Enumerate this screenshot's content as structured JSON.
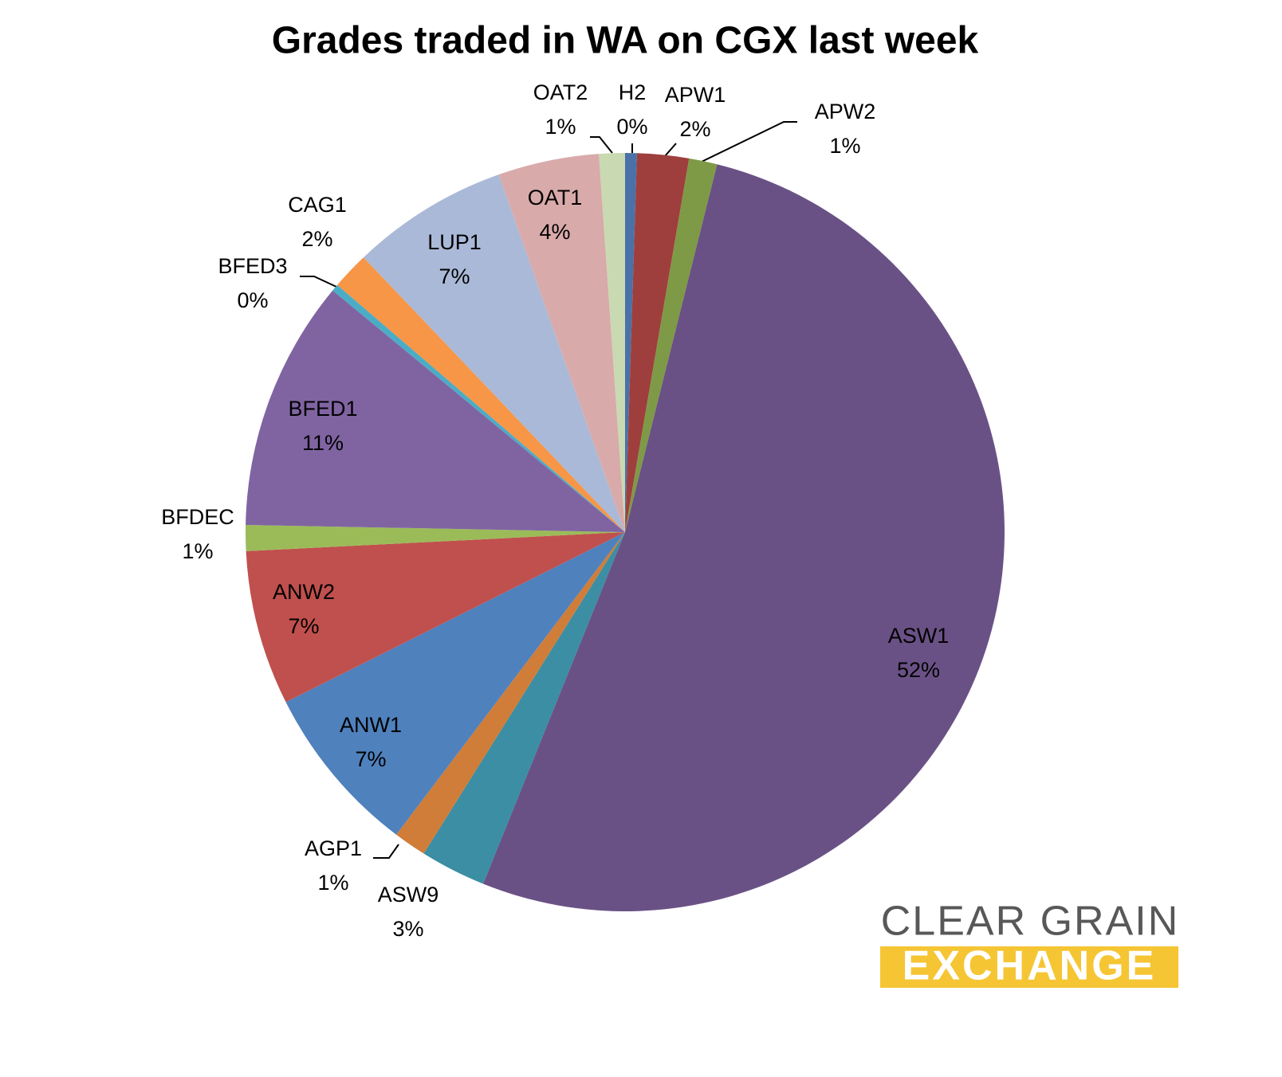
{
  "chart_data": {
    "type": "pie",
    "title": "Grades traded in WA on CGX last week",
    "categories": [
      "H2",
      "APW1",
      "APW2",
      "ASW1",
      "ASW9",
      "AGP1",
      "ANW1",
      "ANW2",
      "BFDEC",
      "BFED1",
      "BFED3",
      "CAG1",
      "LUP1",
      "OAT1",
      "OAT2"
    ],
    "values": [
      0.5,
      2.2,
      1.2,
      52.2,
      2.8,
      1.4,
      7.3,
      6.6,
      1.1,
      10.7,
      0.3,
      1.6,
      6.7,
      4.3,
      1.1
    ],
    "value_labels": [
      "0%",
      "2%",
      "1%",
      "52%",
      "3%",
      "1%",
      "7%",
      "7%",
      "1%",
      "11%",
      "0%",
      "2%",
      "7%",
      "4%",
      "1%"
    ],
    "colors": [
      "#4a72a8",
      "#9e3f3d",
      "#7e9a46",
      "#6a5185",
      "#3b8ea3",
      "#cf7d39",
      "#4f81bd",
      "#c0504d",
      "#9bbb59",
      "#8064a2",
      "#4bacc6",
      "#f79646",
      "#aab9d7",
      "#d9aaaa",
      "#c9d9b2"
    ]
  },
  "logo": {
    "line1": "CLEAR GRAIN",
    "line2": "EXCHANGE"
  }
}
